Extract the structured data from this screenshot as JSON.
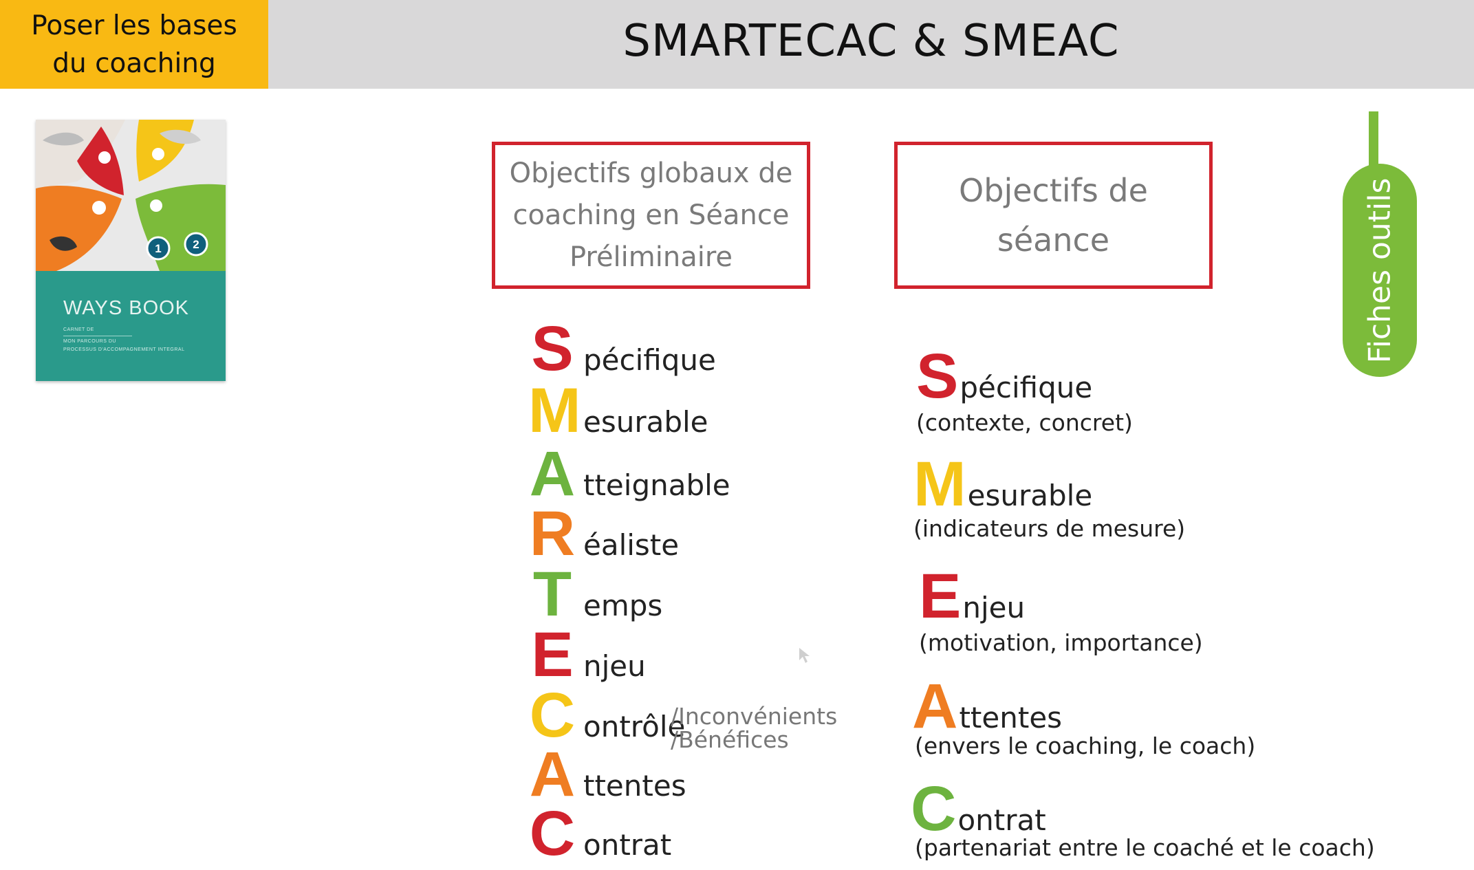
{
  "header": {
    "section_line1": "Poser les bases",
    "section_line2": "du coaching",
    "title": "SMARTECAC & SMEAC"
  },
  "book": {
    "title": "WAYS BOOK",
    "sub1": "CARNET DE",
    "sub2": "MON PARCOURS DU",
    "sub3": "PROCESSUS D'ACCOMPAGNEMENT INTEGRAL",
    "badge1": "1",
    "badge2": "2"
  },
  "box_global": {
    "line1": "Objectifs globaux de",
    "line2": "coaching en Séance",
    "line3": "Préliminaire"
  },
  "box_session": {
    "line1": "Objectifs de",
    "line2": "séance"
  },
  "tools_tab": "Fiches outils",
  "smartecac": [
    {
      "letter": "S",
      "word": "pécifique",
      "color": "#d1232d"
    },
    {
      "letter": "M",
      "word": "esurable",
      "color": "#f5c518"
    },
    {
      "letter": "A",
      "word": "tteignable",
      "color": "#6db33f"
    },
    {
      "letter": "R",
      "word": "éaliste",
      "color": "#ef7d22"
    },
    {
      "letter": "T",
      "word": "emps",
      "color": "#6db33f"
    },
    {
      "letter": "E",
      "word": "njeu",
      "color": "#d1232d"
    },
    {
      "letter": "C",
      "word": "ontrôle",
      "color": "#f5c518"
    },
    {
      "letter": "A",
      "word": "ttentes",
      "color": "#ef7d22"
    },
    {
      "letter": "C",
      "word": "ontrat",
      "color": "#d1232d"
    }
  ],
  "controle_extra": {
    "line1": "/Inconvénients",
    "line2": "/Bénéfices"
  },
  "smeac": [
    {
      "letter": "S",
      "word": "pécifique",
      "note": "(contexte, concret)",
      "color": "#d1232d"
    },
    {
      "letter": "M",
      "word": "esurable",
      "note": "(indicateurs de mesure)",
      "color": "#f5c518"
    },
    {
      "letter": "E",
      "word": "njeu",
      "note": "(motivation, importance)",
      "color": "#d1232d"
    },
    {
      "letter": "A",
      "word": "ttentes",
      "note": "(envers le coaching, le coach)",
      "color": "#ef7d22"
    },
    {
      "letter": "C",
      "word": "ontrat",
      "note": "(partenariat entre le coaché et le coach)",
      "color": "#6db33f"
    }
  ]
}
